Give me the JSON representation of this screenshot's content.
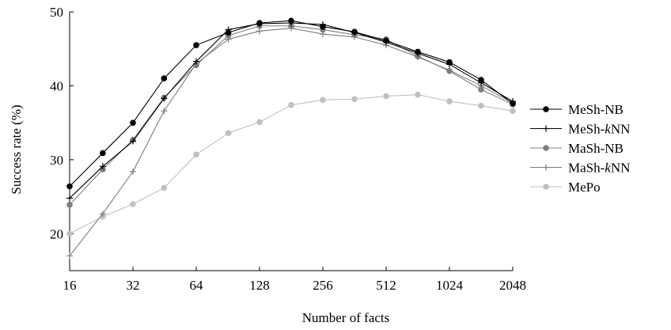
{
  "chart_data": {
    "type": "line",
    "xlabel": "Number of facts",
    "ylabel": "Success rate (%)",
    "x_scale": "log2",
    "xlim": [
      16,
      2048
    ],
    "ylim": [
      15,
      50
    ],
    "x_ticks": [
      16,
      32,
      64,
      128,
      256,
      512,
      1024,
      2048
    ],
    "y_ticks": [
      20,
      30,
      40,
      50
    ],
    "x": [
      16,
      23,
      32,
      45,
      64,
      91,
      128,
      181,
      256,
      362,
      512,
      724,
      1024,
      1448,
      2048
    ],
    "legend_position": "right",
    "grid": false,
    "series": [
      {
        "name": "MeSh-NB",
        "marker": "circle",
        "color": "#000000",
        "values": [
          26.4,
          30.9,
          35.0,
          41.0,
          45.5,
          47.2,
          48.5,
          48.8,
          48.0,
          47.3,
          46.1,
          44.6,
          43.2,
          40.8,
          37.6
        ]
      },
      {
        "name": "MeSh-kNN",
        "marker": "plus",
        "color": "#000000",
        "values": [
          24.8,
          29.1,
          32.5,
          38.3,
          43.3,
          47.6,
          48.4,
          48.5,
          48.3,
          47.2,
          45.9,
          44.4,
          42.9,
          40.4,
          37.9
        ]
      },
      {
        "name": "MaSh-NB",
        "marker": "circle",
        "color": "#7f7f7f",
        "values": [
          23.9,
          28.7,
          32.7,
          38.4,
          42.8,
          46.8,
          48.1,
          48.1,
          47.6,
          46.9,
          46.3,
          44.0,
          42.0,
          39.5,
          37.5
        ]
      },
      {
        "name": "MaSh-kNN",
        "marker": "plus",
        "color": "#7f7f7f",
        "values": [
          17.0,
          22.7,
          28.4,
          36.6,
          43.0,
          46.3,
          47.4,
          47.8,
          47.0,
          46.6,
          45.5,
          43.9,
          42.1,
          40.0,
          37.7
        ]
      },
      {
        "name": "MePo",
        "marker": "circle",
        "color": "#c0c0c0",
        "values": [
          20.0,
          22.3,
          24.0,
          26.2,
          30.7,
          33.6,
          35.1,
          37.4,
          38.1,
          38.2,
          38.6,
          38.8,
          37.9,
          37.3,
          36.6
        ]
      }
    ]
  }
}
